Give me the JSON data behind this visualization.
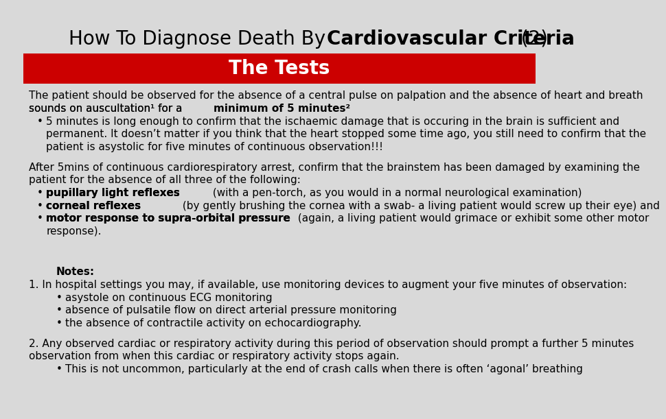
{
  "title_normal": "How To Diagnose Death By ",
  "title_bold": "Cardiovascular Criteria",
  "title_suffix": " (2)",
  "title_fontsize": 20,
  "bg_color": "#d9d9d9",
  "red_banner_color": "#cc0000",
  "red_banner_text": "The Tests",
  "red_banner_text_color": "#ffffff",
  "red_banner_fontsize": 20,
  "body_fontsize": 11,
  "text_color": "#000000",
  "para1_line1": "The patient should be observed for the absence of a central pulse on palpation and the absence of heart and breath",
  "para1_line2_pre": "sounds on auscultation¹ for a ",
  "para1_bold": "minimum of 5 minutes²",
  "bullet1_line1": "5 minutes is long enough to confirm that the ischaemic damage that is occuring in the brain is sufficient and",
  "bullet1_line2": "permanent. It doesn’t matter if you think that the heart stopped some time ago, you still need to confirm that the",
  "bullet1_line3": "patient is asystolic for five minutes of continuous observation!!!",
  "para2_line1": "After 5mins of continuous cardiorespiratory arrest, confirm that the brainstem has been damaged by examining the",
  "para2_line2": "patient for the absence of all three of the following:",
  "bullet2_bold": "pupillary light reflexes",
  "bullet2_rest": " (with a pen-torch, as you would in a normal neurological examination)",
  "bullet3_bold": "corneal reflexes",
  "bullet3_rest": " (by gently brushing the cornea with a swab- a living patient would screw up their eye) and",
  "bullet4_bold": "motor response to supra-orbital pressure",
  "bullet4_rest_line1": " (again, a living patient would grimace or exhibit some other motor",
  "bullet4_rest_line2": "response).",
  "notes_label": "Notes:",
  "note1": "1. In hospital settings you may, if available, use monitoring devices to augment your five minutes of observation:",
  "note1b1": "asystole on continuous ECG monitoring",
  "note1b2": "absence of pulsatile flow on direct arterial pressure monitoring",
  "note1b3": "the absence of contractile activity on echocardiography.",
  "note2_line1": "2. Any observed cardiac or respiratory activity during this period of observation should prompt a further 5 minutes",
  "note2_line2": "observation from when this cardiac or respiratory activity stops again.",
  "note2b1": "This is not uncommon, particularly at the end of crash calls when there is often ‘agonal’ breathing"
}
